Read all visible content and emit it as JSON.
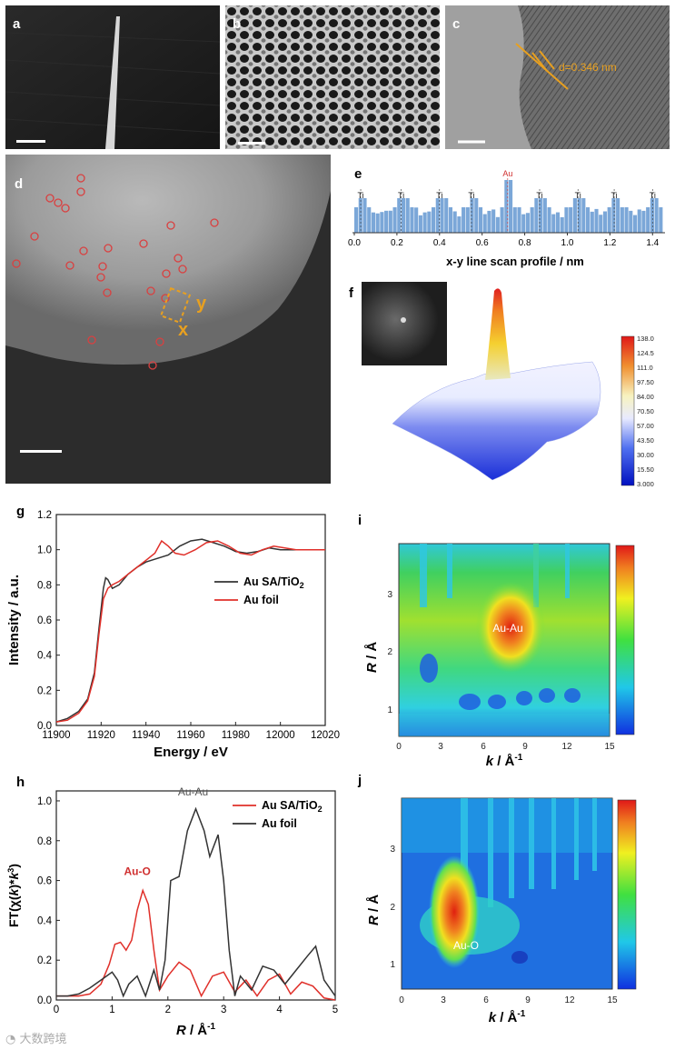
{
  "panels": {
    "a": {
      "label": "a"
    },
    "b": {
      "label": "b"
    },
    "c": {
      "label": "c",
      "d_spacing": "d=0.346 nm"
    },
    "d": {
      "label": "d",
      "y_marker": "y",
      "x_marker": "x"
    },
    "e": {
      "label": "e",
      "xlabel": "x-y line scan profile / nm",
      "peak_labels": [
        {
          "text": "Ti",
          "pos": 0.03
        },
        {
          "text": "Ti",
          "pos": 0.22
        },
        {
          "text": "Ti",
          "pos": 0.4
        },
        {
          "text": "Ti",
          "pos": 0.55
        },
        {
          "text": "Au",
          "pos": 0.72
        },
        {
          "text": "Ti",
          "pos": 0.87
        },
        {
          "text": "Ti",
          "pos": 1.05
        },
        {
          "text": "Ti",
          "pos": 1.22
        },
        {
          "text": "Ti",
          "pos": 1.4
        }
      ],
      "ticks": [
        "0.0",
        "0.2",
        "0.4",
        "0.6",
        "0.8",
        "1.0",
        "1.2",
        "1.4"
      ]
    },
    "f": {
      "label": "f",
      "colorbar_ticks": [
        "138.0",
        "124.5",
        "111.0",
        "97.50",
        "84.00",
        "70.50",
        "57.00",
        "43.50",
        "30.00",
        "15.50",
        "3.000"
      ]
    },
    "g": {
      "label": "g"
    },
    "h": {
      "label": "h"
    },
    "i": {
      "label": "i",
      "annotation": "Au-Au",
      "ylabel_R": "R",
      "ylabel_unit": " / Å",
      "xlabel_k": "k",
      "xlabel_unit": " / Å",
      "xlabel_sup": "-1",
      "yticks": [
        "1",
        "2",
        "3"
      ],
      "xticks": [
        "0",
        "3",
        "6",
        "9",
        "12",
        "15"
      ]
    },
    "j": {
      "label": "j",
      "annotation": "Au-O",
      "ylabel_R": "R",
      "ylabel_unit": " / Å",
      "xlabel_k": "k",
      "xlabel_unit": " / Å",
      "xlabel_sup": "-1",
      "yticks": [
        "1",
        "2",
        "3"
      ],
      "xticks": [
        "0",
        "3",
        "6",
        "9",
        "12",
        "15"
      ]
    }
  },
  "watermark": "大数跨境",
  "chart_data": [
    {
      "id": "g",
      "type": "line",
      "xlabel": "Energy / eV",
      "ylabel": "Intensity / a.u.",
      "xlim": [
        11900,
        12020
      ],
      "ylim": [
        0,
        1.2
      ],
      "xticks": [
        11900,
        11920,
        11940,
        11960,
        11980,
        12000,
        12020
      ],
      "yticks": [
        0.0,
        0.2,
        0.4,
        0.6,
        0.8,
        1.0,
        1.2
      ],
      "legend": [
        "Au SA/TiO2",
        "Au foil"
      ],
      "series": [
        {
          "name": "Au SA/TiO2",
          "color": "#333333",
          "x": [
            11900,
            11905,
            11910,
            11914,
            11917,
            11919,
            11921,
            11922,
            11923,
            11925,
            11928,
            11932,
            11936,
            11940,
            11945,
            11950,
            11955,
            11960,
            11965,
            11970,
            11975,
            11980,
            11985,
            11990,
            11995,
            12000,
            12005,
            12010,
            12015,
            12020
          ],
          "y": [
            0.02,
            0.04,
            0.08,
            0.15,
            0.3,
            0.55,
            0.78,
            0.84,
            0.83,
            0.78,
            0.8,
            0.86,
            0.9,
            0.93,
            0.95,
            0.97,
            1.02,
            1.05,
            1.06,
            1.04,
            1.02,
            0.99,
            0.98,
            0.99,
            1.01,
            1.0,
            1.0,
            1.0,
            1.0,
            1.0
          ]
        },
        {
          "name": "Au foil",
          "color": "#e0302a",
          "x": [
            11900,
            11905,
            11910,
            11914,
            11917,
            11919,
            11921,
            11923,
            11925,
            11928,
            11932,
            11936,
            11940,
            11944,
            11947,
            11950,
            11953,
            11957,
            11962,
            11967,
            11972,
            11977,
            11982,
            11987,
            11992,
            11997,
            12002,
            12007,
            12012,
            12020
          ],
          "y": [
            0.02,
            0.03,
            0.07,
            0.14,
            0.28,
            0.52,
            0.72,
            0.78,
            0.8,
            0.82,
            0.86,
            0.9,
            0.94,
            0.98,
            1.05,
            1.02,
            0.98,
            0.97,
            1.0,
            1.04,
            1.05,
            1.02,
            0.98,
            0.97,
            1.0,
            1.02,
            1.01,
            1.0,
            1.0,
            1.0
          ]
        }
      ]
    },
    {
      "id": "h",
      "type": "line",
      "xlabel": "R / Å-1",
      "ylabel": "FT(χ(k)*k3)",
      "xlim": [
        0,
        5
      ],
      "ylim": [
        0,
        1.05
      ],
      "xticks": [
        0,
        1,
        2,
        3,
        4,
        5
      ],
      "yticks": [
        0.0,
        0.2,
        0.4,
        0.6,
        0.8,
        1.0
      ],
      "legend": [
        "Au SA/TiO2",
        "Au foil"
      ],
      "annotations": [
        {
          "text": "Au-O",
          "x": 1.55,
          "y": 0.6
        },
        {
          "text": "Au-Au",
          "x": 2.55,
          "y": 1.0
        }
      ],
      "series": [
        {
          "name": "Au SA/TiO2",
          "color": "#e0302a",
          "x": [
            0,
            0.2,
            0.4,
            0.6,
            0.8,
            0.95,
            1.05,
            1.15,
            1.25,
            1.35,
            1.45,
            1.55,
            1.65,
            1.75,
            1.85,
            2.0,
            2.2,
            2.4,
            2.6,
            2.8,
            3.0,
            3.2,
            3.4,
            3.6,
            3.8,
            4.0,
            4.2,
            4.4,
            4.6,
            4.8,
            5.0
          ],
          "y": [
            0.02,
            0.02,
            0.02,
            0.03,
            0.08,
            0.18,
            0.28,
            0.29,
            0.25,
            0.3,
            0.45,
            0.55,
            0.48,
            0.25,
            0.05,
            0.12,
            0.19,
            0.15,
            0.02,
            0.12,
            0.14,
            0.04,
            0.1,
            0.02,
            0.1,
            0.13,
            0.03,
            0.09,
            0.07,
            0.01,
            0.0
          ]
        },
        {
          "name": "Au foil",
          "color": "#333333",
          "x": [
            0,
            0.2,
            0.4,
            0.6,
            0.8,
            1.0,
            1.1,
            1.2,
            1.3,
            1.45,
            1.6,
            1.75,
            1.85,
            1.95,
            2.05,
            2.2,
            2.35,
            2.5,
            2.65,
            2.75,
            2.9,
            3.0,
            3.1,
            3.2,
            3.3,
            3.5,
            3.7,
            3.9,
            4.1,
            4.3,
            4.5,
            4.65,
            4.8,
            5.0
          ],
          "y": [
            0.02,
            0.02,
            0.03,
            0.06,
            0.1,
            0.14,
            0.1,
            0.02,
            0.08,
            0.12,
            0.02,
            0.15,
            0.05,
            0.2,
            0.6,
            0.62,
            0.85,
            0.96,
            0.85,
            0.72,
            0.83,
            0.6,
            0.25,
            0.02,
            0.12,
            0.05,
            0.17,
            0.15,
            0.08,
            0.15,
            0.22,
            0.27,
            0.1,
            0.02
          ]
        }
      ]
    }
  ]
}
